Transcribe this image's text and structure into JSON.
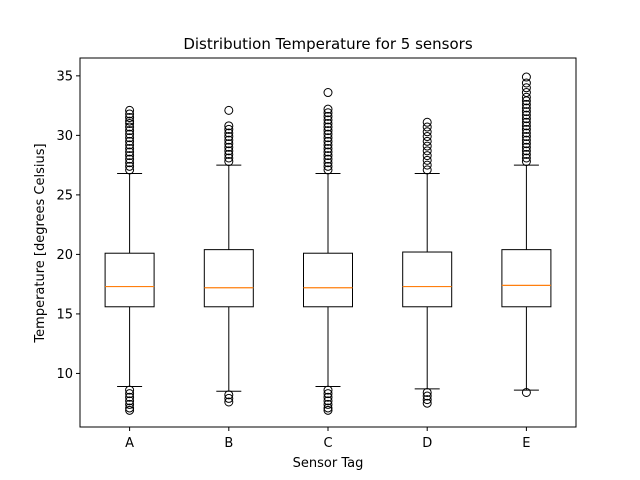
{
  "chart_data": {
    "type": "boxplot",
    "title": "Distribution Temperature for 5 sensors",
    "xlabel": "Sensor Tag",
    "ylabel": "Temperature [degrees Celsius]",
    "categories": [
      "A",
      "B",
      "C",
      "D",
      "E"
    ],
    "ylim": [
      5.5,
      36.5
    ],
    "yticks": [
      10,
      15,
      20,
      25,
      30,
      35
    ],
    "grid": false,
    "box_color": "#000000",
    "median_color": "#ff7f0e",
    "boxes": [
      {
        "label": "A",
        "whisker_low": 8.9,
        "q1": 15.6,
        "median": 17.3,
        "q3": 20.1,
        "whisker_high": 26.8,
        "outliers": [
          27.1,
          27.4,
          27.7,
          28.0,
          28.3,
          28.6,
          28.9,
          29.2,
          29.5,
          29.8,
          30.1,
          30.4,
          30.7,
          31.0,
          31.2,
          31.5,
          31.8,
          32.1,
          8.6,
          8.3,
          8.0,
          7.7,
          7.4,
          7.1,
          6.9
        ]
      },
      {
        "label": "B",
        "whisker_low": 8.5,
        "q1": 15.6,
        "median": 17.2,
        "q3": 20.4,
        "whisker_high": 27.5,
        "outliers": [
          27.8,
          28.1,
          28.4,
          28.7,
          29.0,
          29.3,
          29.6,
          29.9,
          30.2,
          30.5,
          30.8,
          32.1,
          8.2,
          7.9,
          7.6
        ]
      },
      {
        "label": "C",
        "whisker_low": 8.9,
        "q1": 15.6,
        "median": 17.2,
        "q3": 20.1,
        "whisker_high": 26.8,
        "outliers": [
          27.1,
          27.4,
          27.7,
          28.0,
          28.3,
          28.6,
          28.9,
          29.2,
          29.5,
          29.8,
          30.1,
          30.4,
          30.7,
          31.0,
          31.3,
          31.6,
          31.9,
          32.2,
          33.6,
          8.6,
          8.3,
          8.0,
          7.7,
          7.4,
          7.1,
          6.9
        ]
      },
      {
        "label": "D",
        "whisker_low": 8.7,
        "q1": 15.6,
        "median": 17.3,
        "q3": 20.2,
        "whisker_high": 26.8,
        "outliers": [
          27.1,
          27.5,
          27.9,
          28.3,
          28.7,
          29.1,
          29.5,
          29.9,
          30.3,
          30.7,
          31.1,
          8.4,
          8.1,
          7.8,
          7.5
        ]
      },
      {
        "label": "E",
        "whisker_low": 8.6,
        "q1": 15.6,
        "median": 17.4,
        "q3": 20.4,
        "whisker_high": 27.5,
        "outliers": [
          27.8,
          28.1,
          28.4,
          28.7,
          29.0,
          29.3,
          29.6,
          29.9,
          30.2,
          30.5,
          30.8,
          31.1,
          31.4,
          31.7,
          32.0,
          32.3,
          32.6,
          32.9,
          33.2,
          33.6,
          34.0,
          34.4,
          34.9,
          8.4
        ]
      }
    ]
  }
}
